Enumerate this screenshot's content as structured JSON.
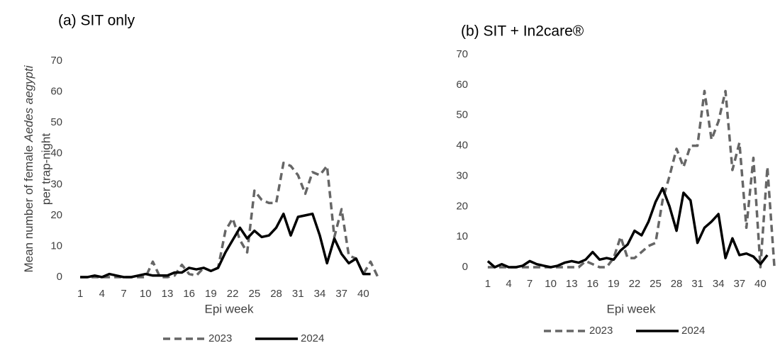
{
  "chart_data": [
    {
      "type": "line",
      "title": "(a) SIT only",
      "ylabel": [
        "Mean number of female",
        "Aedes aegypti",
        "per trap-night"
      ],
      "xlabel": "Epi week",
      "x": [
        1,
        2,
        3,
        4,
        5,
        6,
        7,
        8,
        9,
        10,
        11,
        12,
        13,
        14,
        15,
        16,
        17,
        18,
        19,
        20,
        21,
        22,
        23,
        24,
        25,
        26,
        27,
        28,
        29,
        30,
        31,
        32,
        33,
        34,
        35,
        36,
        37,
        38,
        39,
        40,
        41,
        42
      ],
      "xlim": [
        0.5,
        42.5
      ],
      "xticks": [
        1,
        4,
        7,
        10,
        13,
        16,
        19,
        22,
        25,
        28,
        31,
        34,
        37,
        40
      ],
      "ylim": [
        0,
        70
      ],
      "yticks": [
        0,
        10,
        20,
        30,
        40,
        50,
        60,
        70
      ],
      "series": [
        {
          "name": "2023",
          "color": "#666666",
          "dash": "dashed",
          "values": [
            0,
            0,
            0,
            0,
            0,
            0,
            0,
            0,
            0,
            0,
            5,
            0,
            0,
            0.5,
            4,
            1,
            0.5,
            3,
            2,
            3,
            15,
            19,
            12,
            8,
            28,
            25,
            24,
            24,
            37,
            36,
            33,
            27,
            34,
            33,
            36,
            13,
            22,
            7,
            6,
            1,
            5,
            0
          ]
        },
        {
          "name": "2024",
          "color": "#000000",
          "dash": "solid",
          "values": [
            0,
            0,
            0.5,
            0,
            1,
            0.5,
            0,
            0,
            0.5,
            1,
            0.5,
            0.5,
            0.5,
            1.5,
            1.5,
            3,
            2.5,
            3,
            2,
            3,
            8,
            12,
            16,
            12.5,
            15,
            13,
            13.5,
            16,
            20.5,
            13.5,
            19.5,
            20,
            20.5,
            13.5,
            4.5,
            12.5,
            7.5,
            4.5,
            6,
            1,
            1,
            null
          ]
        }
      ]
    },
    {
      "type": "line",
      "title": "(b) SIT + In2care®",
      "xlabel": "Epi week",
      "x": [
        1,
        2,
        3,
        4,
        5,
        6,
        7,
        8,
        9,
        10,
        11,
        12,
        13,
        14,
        15,
        16,
        17,
        18,
        19,
        20,
        21,
        22,
        23,
        24,
        25,
        26,
        27,
        28,
        29,
        30,
        31,
        32,
        33,
        34,
        35,
        36,
        37,
        38,
        39,
        40,
        41,
        42
      ],
      "xlim": [
        0.5,
        42.5
      ],
      "xticks": [
        1,
        4,
        7,
        10,
        13,
        16,
        19,
        22,
        25,
        28,
        31,
        34,
        37,
        40
      ],
      "ylim": [
        0,
        70
      ],
      "yticks": [
        0,
        10,
        20,
        30,
        40,
        50,
        60,
        70
      ],
      "series": [
        {
          "name": "2023",
          "color": "#666666",
          "dash": "dashed",
          "values": [
            0,
            0,
            0,
            0,
            0,
            0,
            0,
            0,
            0,
            0,
            0,
            0,
            0,
            0,
            2,
            1,
            0,
            0,
            3,
            10,
            3,
            3,
            5,
            7,
            8,
            22,
            30,
            39,
            33,
            40,
            40,
            58,
            42,
            48,
            58,
            32,
            41,
            13,
            36,
            0,
            33,
            0
          ]
        },
        {
          "name": "2024",
          "color": "#000000",
          "dash": "solid",
          "values": [
            2,
            0,
            1,
            0,
            0,
            0.5,
            2,
            1,
            0.5,
            0,
            0.5,
            1.5,
            2,
            1.5,
            2.5,
            5,
            2.5,
            3,
            2.5,
            5.5,
            7.5,
            12,
            10.5,
            15,
            21.5,
            26,
            20,
            12,
            24.5,
            22,
            8,
            13,
            15,
            17.5,
            3,
            9.5,
            4,
            4.5,
            3.5,
            1,
            4,
            null
          ]
        }
      ]
    }
  ]
}
